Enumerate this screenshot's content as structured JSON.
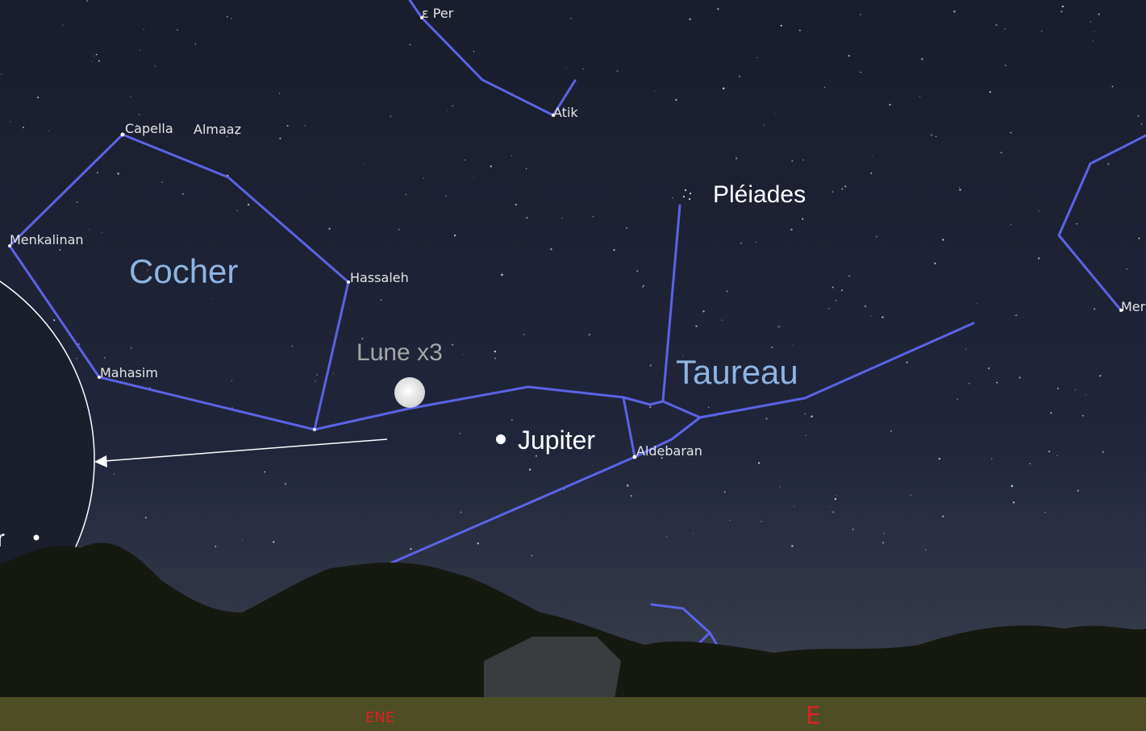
{
  "labels": {
    "eper": "ε Per",
    "atik": "Atik",
    "capella": "Capella",
    "almaaz": "Almaaz",
    "menkalinan": "Menkalinan",
    "cocher": "Cocher",
    "hassaleh": "Hassaleh",
    "lune": "Lune x3",
    "mahasim": "Mahasim",
    "pleiades": "Pléiades",
    "taureau": "Taureau",
    "jupiter": "Jupiter",
    "aldebaran": "Aldebaran",
    "men": "Mer",
    "inset": "r",
    "ene": "ENE",
    "e": "E"
  }
}
